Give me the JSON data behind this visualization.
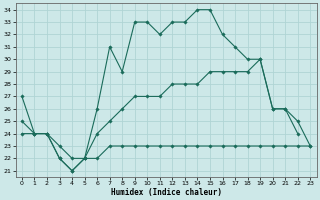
{
  "xlabel": "Humidex (Indice chaleur)",
  "bg_color": "#cde8e8",
  "grid_color": "#b0d4d4",
  "line_color": "#1a6b5a",
  "xlim": [
    -0.5,
    23.5
  ],
  "ylim": [
    20.5,
    34.5
  ],
  "xticks": [
    0,
    1,
    2,
    3,
    4,
    5,
    6,
    7,
    8,
    9,
    10,
    11,
    12,
    13,
    14,
    15,
    16,
    17,
    18,
    19,
    20,
    21,
    22,
    23
  ],
  "yticks": [
    21,
    22,
    23,
    24,
    25,
    26,
    27,
    28,
    29,
    30,
    31,
    32,
    33,
    34
  ],
  "series1_x": [
    0,
    1,
    2,
    3,
    4,
    5,
    6,
    7,
    8,
    9,
    10,
    11,
    12,
    13,
    14,
    15,
    16,
    17,
    18,
    19,
    20,
    21,
    22
  ],
  "series1_y": [
    27,
    24,
    24,
    22,
    21,
    22,
    26,
    31,
    29,
    33,
    33,
    32,
    33,
    33,
    34,
    34,
    32,
    31,
    30,
    30,
    26,
    26,
    24
  ],
  "series2_x": [
    0,
    1,
    2,
    3,
    4,
    5,
    6,
    7,
    8,
    9,
    10,
    11,
    12,
    13,
    14,
    15,
    16,
    17,
    18,
    19,
    20,
    21,
    22,
    23
  ],
  "series2_y": [
    25,
    24,
    24,
    23,
    22,
    22,
    24,
    25,
    26,
    27,
    27,
    27,
    28,
    28,
    28,
    29,
    29,
    29,
    29,
    30,
    26,
    26,
    25,
    23
  ],
  "series3_x": [
    0,
    1,
    2,
    3,
    4,
    5,
    6,
    7,
    8,
    9,
    10,
    11,
    12,
    13,
    14,
    15,
    16,
    17,
    18,
    19,
    20,
    21,
    22,
    23
  ],
  "series3_y": [
    24,
    24,
    24,
    22,
    21,
    22,
    22,
    23,
    23,
    23,
    23,
    23,
    23,
    23,
    23,
    23,
    23,
    23,
    23,
    23,
    23,
    23,
    23,
    23
  ]
}
